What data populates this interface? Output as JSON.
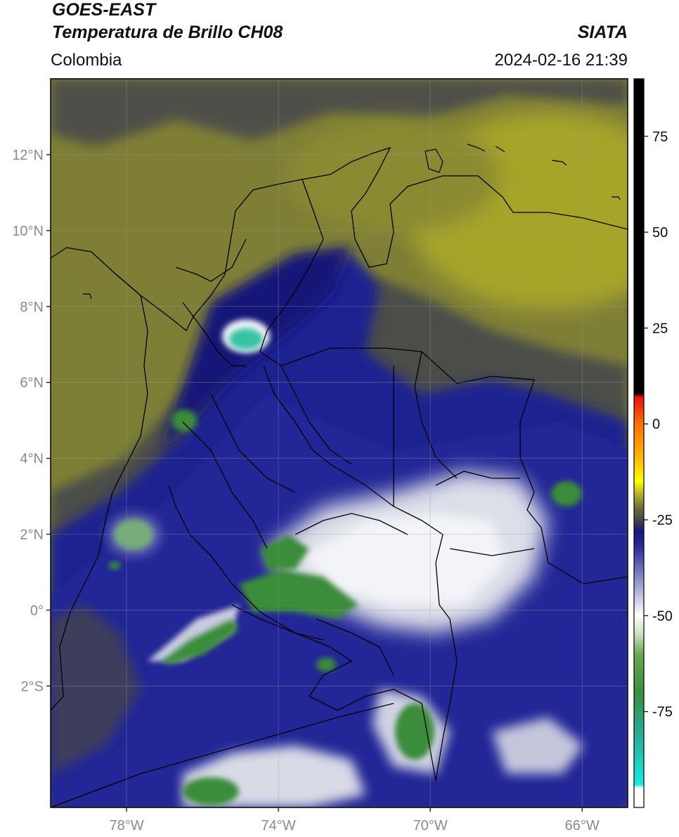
{
  "header": {
    "title_line1": "GOES-EAST",
    "title_line2": "Temperatura de Brillo CH08",
    "brand": "SIATA",
    "region": "Colombia",
    "timestamp": "2024-02-16 21:39"
  },
  "map": {
    "projection": "lat-lon",
    "lon_range": [
      -80,
      -64.8
    ],
    "lat_range": [
      -5.2,
      14
    ],
    "lat_ticks": [
      {
        "value": 12,
        "label": "12°N"
      },
      {
        "value": 10,
        "label": "10°N"
      },
      {
        "value": 8,
        "label": "8°N"
      },
      {
        "value": 6,
        "label": "6°N"
      },
      {
        "value": 4,
        "label": "4°N"
      },
      {
        "value": 2,
        "label": "2°N"
      },
      {
        "value": 0,
        "label": "0°"
      },
      {
        "value": -2,
        "label": "2°S"
      }
    ],
    "lon_ticks": [
      {
        "value": -78,
        "label": "78°W"
      },
      {
        "value": -74,
        "label": "74°W"
      },
      {
        "value": -70,
        "label": "70°W"
      },
      {
        "value": -66,
        "label": "66°W"
      }
    ],
    "grid": true,
    "field": "brightness temperature (°C)",
    "notes_colors": {
      "warm_dry": "#8f9030",
      "mid": "#56564a",
      "cold_blue": "#1f2490",
      "very_cold_white": "#eef0f4",
      "coldest_green": "#3a8f3c",
      "cyan_core": "#36c4a4"
    }
  },
  "colorbar": {
    "range": [
      -100,
      90
    ],
    "ticks": [
      {
        "value": 75,
        "label": "75"
      },
      {
        "value": 50,
        "label": "50"
      },
      {
        "value": 25,
        "label": "25"
      },
      {
        "value": 0,
        "label": "0"
      },
      {
        "value": -25,
        "label": "-25"
      },
      {
        "value": -50,
        "label": "-50"
      },
      {
        "value": -75,
        "label": "-75"
      }
    ],
    "stops": [
      {
        "t": -100,
        "color": "#ffffff"
      },
      {
        "t": -95,
        "color": "#ffffff"
      },
      {
        "t": -94,
        "color": "#19e8e0"
      },
      {
        "t": -80,
        "color": "#2aa890"
      },
      {
        "t": -70,
        "color": "#3a8f3c"
      },
      {
        "t": -60,
        "color": "#6aa852"
      },
      {
        "t": -55,
        "color": "#c8e0bc"
      },
      {
        "t": -50,
        "color": "#ffffff"
      },
      {
        "t": -42,
        "color": "#9ea0d0"
      },
      {
        "t": -32,
        "color": "#2a2c98"
      },
      {
        "t": -28,
        "color": "#141878"
      },
      {
        "t": -25,
        "color": "#474747"
      },
      {
        "t": -22,
        "color": "#6a6a3c"
      },
      {
        "t": -18,
        "color": "#b8b828"
      },
      {
        "t": -15,
        "color": "#ffff00"
      },
      {
        "t": -8,
        "color": "#ffb000"
      },
      {
        "t": 0,
        "color": "#ff7000"
      },
      {
        "t": 7,
        "color": "#e81010"
      },
      {
        "t": 8,
        "color": "#000000"
      },
      {
        "t": 90,
        "color": "#000000"
      }
    ]
  }
}
